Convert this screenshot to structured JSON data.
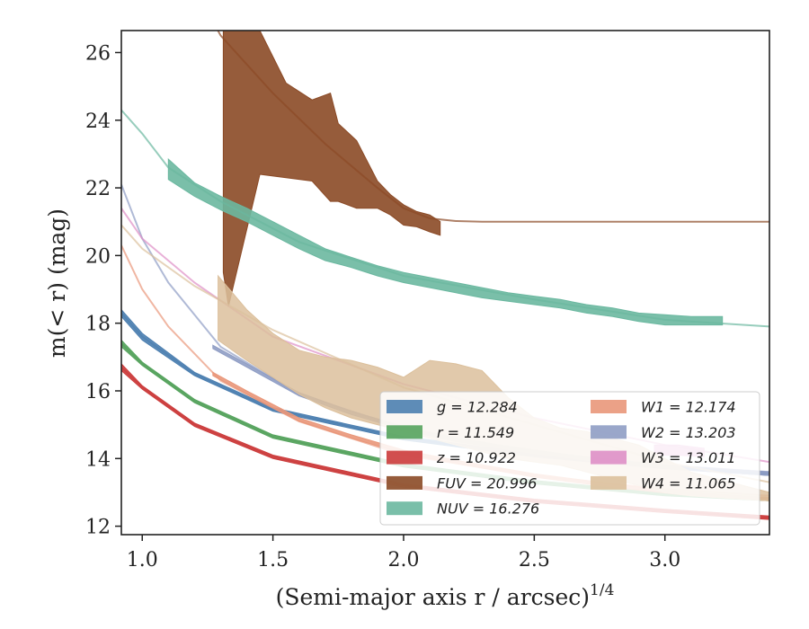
{
  "chart_data": {
    "type": "line",
    "title": "",
    "xlabel": "(Semi-major axis r / arcsec)",
    "xlabel_sup": "1/4",
    "ylabel": "m(< r) (mag)",
    "xlim": [
      0.92,
      3.4
    ],
    "ylim": [
      26.65,
      11.75
    ],
    "y_inverted": true,
    "grid": false,
    "legend_position": "lower-right",
    "xticks": [
      1.0,
      1.5,
      2.0,
      2.5,
      3.0
    ],
    "xtick_labels": [
      "1.0",
      "1.5",
      "2.0",
      "2.5",
      "3.0"
    ],
    "yticks": [
      12,
      14,
      16,
      18,
      20,
      22,
      24,
      26
    ],
    "ytick_labels": [
      "12",
      "14",
      "16",
      "18",
      "20",
      "22",
      "24",
      "26"
    ],
    "series": [
      {
        "name": "g = 12.284",
        "band": "g",
        "value": "12.284",
        "color": "#4c7fb0",
        "model_x": [
          0.92,
          1.0,
          1.2,
          1.5,
          2.0,
          2.5,
          3.0,
          3.4
        ],
        "model_y": [
          18.3,
          17.6,
          16.5,
          15.45,
          14.6,
          14.1,
          13.75,
          13.55
        ],
        "band_x": [
          0.92,
          1.0,
          1.2,
          1.5,
          2.0,
          2.5,
          3.0,
          3.4
        ],
        "band_lo": [
          18.2,
          17.5,
          16.45,
          15.4,
          14.55,
          14.05,
          13.7,
          13.5
        ],
        "band_hi": [
          18.4,
          17.7,
          16.55,
          15.5,
          14.65,
          14.15,
          13.8,
          13.6
        ]
      },
      {
        "name": "r = 11.549",
        "band": "r",
        "value": "11.549",
        "color": "#55a35d",
        "model_x": [
          0.92,
          1.0,
          1.2,
          1.5,
          2.0,
          2.5,
          3.0,
          3.4
        ],
        "model_y": [
          17.4,
          16.8,
          15.7,
          14.65,
          13.8,
          13.3,
          12.95,
          12.8
        ],
        "band_x": [
          0.92,
          1.0,
          1.2,
          1.5,
          2.0,
          2.5,
          3.0,
          3.4
        ],
        "band_lo": [
          17.3,
          16.75,
          15.65,
          14.6,
          13.75,
          13.25,
          12.9,
          12.75
        ],
        "band_hi": [
          17.5,
          16.85,
          15.75,
          14.7,
          13.85,
          13.35,
          13.0,
          12.85
        ]
      },
      {
        "name": "z = 10.922",
        "band": "z",
        "value": "10.922",
        "color": "#cc3c3c",
        "model_x": [
          0.92,
          1.0,
          1.2,
          1.5,
          2.0,
          2.5,
          3.0,
          3.4
        ],
        "model_y": [
          16.7,
          16.1,
          15.0,
          14.05,
          13.2,
          12.75,
          12.45,
          12.25
        ],
        "band_x": [
          0.92,
          1.0,
          1.2,
          1.5,
          2.0,
          2.5,
          3.0,
          3.4
        ],
        "band_lo": [
          16.6,
          16.05,
          14.95,
          14.0,
          13.15,
          12.7,
          12.4,
          12.2
        ],
        "band_hi": [
          16.8,
          16.15,
          15.05,
          14.1,
          13.25,
          12.8,
          12.5,
          12.3
        ]
      },
      {
        "name": "FUV = 20.996",
        "band": "FUV",
        "value": "20.996",
        "color": "#8b4a26",
        "model_x": [
          1.05,
          1.3,
          1.5,
          1.7,
          1.9,
          2.0,
          2.1,
          2.2,
          2.3,
          3.4
        ],
        "model_y": [
          30.0,
          26.5,
          24.8,
          23.3,
          22.0,
          21.4,
          21.1,
          21.02,
          21.0,
          21.0
        ],
        "band_x": [
          1.31,
          1.33,
          1.45,
          1.55,
          1.65,
          1.72,
          1.75,
          1.82,
          1.9,
          1.95,
          2.0,
          2.05,
          2.1,
          2.14
        ],
        "band_lo": [
          26.65,
          26.65,
          26.65,
          25.1,
          24.6,
          24.8,
          23.9,
          23.4,
          22.2,
          21.8,
          21.5,
          21.3,
          21.2,
          21.0
        ],
        "band_hi": [
          19.5,
          18.5,
          22.4,
          22.3,
          22.2,
          21.6,
          21.6,
          21.4,
          21.4,
          21.2,
          20.9,
          20.85,
          20.7,
          20.6
        ]
      },
      {
        "name": "NUV = 16.276",
        "band": "NUV",
        "value": "16.276",
        "color": "#6bb8a0",
        "model_x": [
          0.92,
          1.0,
          1.1,
          1.3,
          1.6,
          2.0,
          2.5,
          3.0,
          3.4
        ],
        "model_y": [
          24.3,
          23.6,
          22.6,
          21.6,
          20.4,
          19.4,
          18.7,
          18.1,
          17.9
        ],
        "band_x": [
          1.1,
          1.2,
          1.3,
          1.4,
          1.5,
          1.6,
          1.7,
          1.8,
          1.9,
          2.0,
          2.1,
          2.2,
          2.3,
          2.4,
          2.5,
          2.6,
          2.7,
          2.8,
          2.9,
          3.0,
          3.1,
          3.22
        ],
        "band_lo": [
          22.85,
          22.15,
          21.75,
          21.4,
          21.0,
          20.6,
          20.2,
          19.95,
          19.7,
          19.5,
          19.35,
          19.2,
          19.05,
          18.9,
          18.8,
          18.7,
          18.55,
          18.45,
          18.3,
          18.25,
          18.2,
          18.2
        ],
        "band_hi": [
          22.25,
          21.75,
          21.35,
          21.0,
          20.6,
          20.2,
          19.85,
          19.65,
          19.4,
          19.2,
          19.05,
          18.9,
          18.75,
          18.65,
          18.55,
          18.45,
          18.3,
          18.2,
          18.05,
          17.95,
          17.95,
          17.95
        ]
      },
      {
        "name": "W1 = 12.174",
        "band": "W1",
        "value": "12.174",
        "color": "#e9977a",
        "model_x": [
          0.92,
          1.0,
          1.1,
          1.3,
          1.6,
          2.0,
          2.5,
          3.0,
          3.4
        ],
        "model_y": [
          20.3,
          19.0,
          17.9,
          16.3,
          15.1,
          14.1,
          13.5,
          13.1,
          12.9
        ],
        "band_x": [
          1.27,
          1.4,
          1.6,
          1.8,
          2.0,
          2.2,
          2.5,
          2.8,
          3.1,
          3.4
        ],
        "band_lo": [
          16.55,
          16.0,
          15.2,
          14.7,
          14.25,
          13.95,
          13.55,
          13.25,
          13.0,
          12.85
        ],
        "band_hi": [
          16.45,
          15.9,
          15.1,
          14.6,
          14.15,
          13.85,
          13.45,
          13.15,
          12.9,
          12.75
        ]
      },
      {
        "name": "W2 = 13.203",
        "band": "W2",
        "value": "13.203",
        "color": "#8f9dc4",
        "model_x": [
          0.92,
          1.0,
          1.1,
          1.3,
          1.6,
          2.0,
          2.5,
          3.0,
          3.4
        ],
        "model_y": [
          22.1,
          20.5,
          19.2,
          17.3,
          15.9,
          14.9,
          14.2,
          13.8,
          13.6
        ],
        "band_x": [
          1.27,
          1.4,
          1.6,
          1.8,
          2.0,
          2.2,
          2.5,
          2.8,
          3.1,
          3.4
        ],
        "band_lo": [
          17.35,
          16.8,
          15.95,
          15.4,
          14.95,
          14.6,
          14.25,
          13.95,
          13.75,
          13.6
        ],
        "band_hi": [
          17.25,
          16.7,
          15.85,
          15.3,
          14.85,
          14.5,
          14.15,
          13.85,
          13.65,
          13.5
        ]
      },
      {
        "name": "W3 = 13.011",
        "band": "W3",
        "value": "13.011",
        "color": "#de8fc6",
        "model_x": [
          0.92,
          1.0,
          1.2,
          1.5,
          2.0,
          2.5,
          3.0,
          3.4
        ],
        "model_y": [
          21.4,
          20.5,
          19.2,
          17.6,
          16.2,
          15.2,
          14.4,
          13.9
        ],
        "band_x": [
          2.96,
          3.05,
          3.15
        ],
        "band_lo": [
          14.4,
          14.4,
          14.3
        ],
        "band_hi": [
          14.1,
          14.1,
          14.05
        ]
      },
      {
        "name": "W4 = 11.065",
        "band": "W4",
        "value": "11.065",
        "color": "#dcc09c",
        "model_x": [
          0.92,
          1.0,
          1.2,
          1.5,
          2.0,
          2.5,
          3.0,
          3.4
        ],
        "model_y": [
          20.9,
          20.2,
          19.1,
          17.8,
          16.1,
          15.0,
          13.9,
          13.3
        ],
        "band_x": [
          1.29,
          1.4,
          1.5,
          1.6,
          1.7,
          1.8,
          1.9,
          2.0,
          2.1,
          2.2,
          2.3,
          2.4,
          2.5,
          2.6,
          2.7,
          2.8,
          2.9,
          3.0,
          3.1,
          3.2,
          3.3,
          3.4
        ],
        "band_lo": [
          19.4,
          18.4,
          17.7,
          17.2,
          17.0,
          16.9,
          16.7,
          16.4,
          16.9,
          16.8,
          16.6,
          15.8,
          15.2,
          14.9,
          14.8,
          14.6,
          14.4,
          14.0,
          13.6,
          13.4,
          13.2,
          13.0
        ],
        "band_hi": [
          17.5,
          16.9,
          16.4,
          15.9,
          15.5,
          15.2,
          15.0,
          14.8,
          14.6,
          14.4,
          14.2,
          14.0,
          13.9,
          13.8,
          13.6,
          13.4,
          13.2,
          13.0,
          12.9,
          12.85,
          12.8,
          12.75
        ]
      }
    ]
  }
}
